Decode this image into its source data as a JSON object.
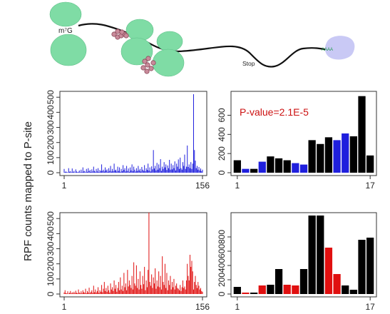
{
  "diagram": {
    "cap_label": "m⁷G",
    "stop_label": "Stop",
    "polya_label": "AAAA",
    "ribosome_color": "#7fdca5",
    "pabp_color": "#c9c9f5",
    "trna_color": "#c98a9a"
  },
  "shared_ylabel": "RPF counts mapped to P-site",
  "colors": {
    "blue": "#1f1fdd",
    "red": "#e01010",
    "black": "#000000"
  },
  "chart_data": [
    {
      "type": "bar",
      "panel": "top-left",
      "x_start_label": "1",
      "x_end_label": "156",
      "ylim": [
        0,
        520
      ],
      "yticks": [
        0,
        100,
        200,
        300,
        400,
        500
      ],
      "series_color": "#1f1fdd",
      "values": [
        25,
        5,
        8,
        4,
        3,
        30,
        6,
        10,
        4,
        28,
        5,
        12,
        3,
        22,
        8,
        4,
        6,
        15,
        3,
        20,
        5,
        35,
        8,
        12,
        4,
        25,
        6,
        30,
        10,
        18,
        5,
        22,
        8,
        40,
        12,
        6,
        25,
        8,
        30,
        5,
        18,
        10,
        55,
        12,
        20,
        8,
        35,
        15,
        22,
        6,
        30,
        12,
        45,
        8,
        25,
        10,
        60,
        15,
        20,
        8,
        40,
        12,
        35,
        6,
        25,
        10,
        50,
        18,
        30,
        8,
        45,
        12,
        28,
        6,
        35,
        15,
        55,
        10,
        40,
        20,
        8,
        30,
        12,
        45,
        15,
        25,
        8,
        38,
        20,
        12,
        50,
        10,
        30,
        18,
        60,
        14,
        35,
        8,
        42,
        22,
        150,
        28,
        45,
        15,
        65,
        20,
        55,
        30,
        90,
        12,
        40,
        25,
        70,
        35,
        55,
        18,
        48,
        30,
        85,
        20,
        60,
        22,
        50,
        30,
        75,
        15,
        60,
        40,
        88,
        25,
        100,
        30,
        20,
        70,
        45,
        120,
        25,
        40,
        180,
        38,
        55,
        30,
        70,
        25,
        60,
        520,
        150,
        80,
        30,
        45,
        20,
        38,
        15,
        28,
        10,
        20
      ]
    },
    {
      "type": "bar",
      "panel": "top-right",
      "x_start_label": "1",
      "x_end_label": "17",
      "ylim": [
        0,
        820
      ],
      "yticks": [
        0,
        200,
        400,
        600
      ],
      "annotation": "P-value=2.1E-5",
      "values": [
        130,
        40,
        40,
        115,
        170,
        150,
        130,
        100,
        85,
        340,
        300,
        370,
        340,
        410,
        380,
        800,
        180
      ],
      "colors": [
        "black",
        "blue",
        "black",
        "blue",
        "black",
        "black",
        "black",
        "blue",
        "blue",
        "black",
        "black",
        "black",
        "blue",
        "blue",
        "black",
        "black",
        "black"
      ]
    },
    {
      "type": "bar",
      "panel": "bottom-left",
      "x_start_label": "1",
      "x_end_label": "156",
      "ylim": [
        0,
        520
      ],
      "yticks": [
        0,
        100,
        200,
        300,
        400,
        500
      ],
      "series_color": "#e01010",
      "values": [
        10,
        25,
        6,
        4,
        18,
        3,
        8,
        20,
        5,
        12,
        4,
        15,
        6,
        22,
        8,
        5,
        30,
        10,
        4,
        18,
        6,
        25,
        12,
        8,
        35,
        5,
        20,
        10,
        42,
        6,
        15,
        25,
        8,
        55,
        12,
        30,
        10,
        20,
        45,
        8,
        25,
        15,
        60,
        12,
        35,
        80,
        20,
        40,
        15,
        55,
        25,
        10,
        70,
        30,
        45,
        20,
        90,
        35,
        60,
        15,
        40,
        80,
        25,
        110,
        30,
        55,
        20,
        140,
        45,
        70,
        25,
        160,
        50,
        90,
        60,
        40,
        120,
        30,
        210,
        70,
        55,
        190,
        40,
        100,
        30,
        150,
        60,
        35,
        120,
        65,
        180,
        25,
        90,
        45,
        160,
        540,
        80,
        55,
        130,
        40,
        110,
        70,
        170,
        35,
        90,
        50,
        150,
        45,
        120,
        30,
        250,
        80,
        60,
        200,
        40,
        140,
        25,
        90,
        60,
        120,
        30,
        80,
        45,
        100,
        30,
        55,
        70,
        40,
        35,
        25,
        60,
        20,
        45,
        90,
        40,
        50,
        30,
        90,
        200,
        120,
        90,
        260,
        180,
        220,
        150,
        30,
        80,
        120,
        60,
        40,
        80,
        55,
        30,
        40,
        20,
        15
      ]
    },
    {
      "type": "bar",
      "panel": "bottom-right",
      "x_start_label": "1",
      "x_end_label": "17",
      "ylim": [
        0,
        1100
      ],
      "yticks": [
        0,
        200,
        400,
        600,
        800
      ],
      "values": [
        100,
        20,
        20,
        120,
        130,
        350,
        130,
        120,
        350,
        1100,
        1100,
        650,
        280,
        120,
        60,
        760,
        790
      ],
      "colors": [
        "black",
        "red",
        "black",
        "red",
        "black",
        "black",
        "red",
        "red",
        "black",
        "black",
        "black",
        "red",
        "red",
        "black",
        "black",
        "black",
        "black"
      ]
    }
  ]
}
